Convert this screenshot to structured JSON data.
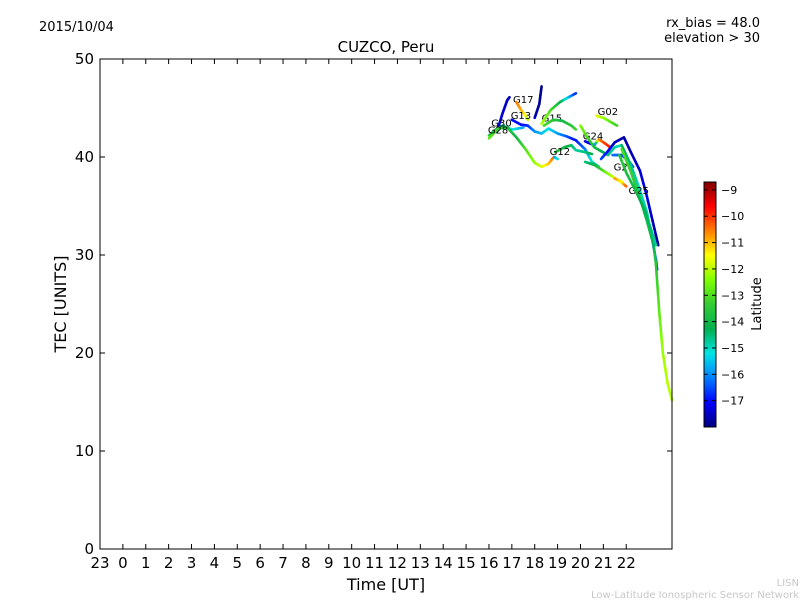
{
  "header": {
    "date": "2015/10/04",
    "rx_bias": "rx_bias = 48.0",
    "elevation": "elevation > 30"
  },
  "footer": {
    "line1": "LISN",
    "line2": "Low-Latitude Ionospheric Sensor Network"
  },
  "chart_data": {
    "type": "scatter",
    "title": "CUZCO, Peru",
    "xlabel": "Time [UT]",
    "ylabel": "TEC [UNITS]",
    "xlim": [
      -1,
      24
    ],
    "ylim": [
      0,
      50
    ],
    "x_ticks": [
      {
        "value": -1,
        "label": "23"
      },
      {
        "value": 0,
        "label": "0"
      },
      {
        "value": 1,
        "label": "1"
      },
      {
        "value": 2,
        "label": "2"
      },
      {
        "value": 3,
        "label": "3"
      },
      {
        "value": 4,
        "label": "4"
      },
      {
        "value": 5,
        "label": "5"
      },
      {
        "value": 6,
        "label": "6"
      },
      {
        "value": 7,
        "label": "7"
      },
      {
        "value": 8,
        "label": "8"
      },
      {
        "value": 9,
        "label": "9"
      },
      {
        "value": 10,
        "label": "10"
      },
      {
        "value": 11,
        "label": "11"
      },
      {
        "value": 12,
        "label": "12"
      },
      {
        "value": 13,
        "label": "13"
      },
      {
        "value": 14,
        "label": "14"
      },
      {
        "value": 15,
        "label": "15"
      },
      {
        "value": 16,
        "label": "16"
      },
      {
        "value": 17,
        "label": "17"
      },
      {
        "value": 18,
        "label": "18"
      },
      {
        "value": 19,
        "label": "19"
      },
      {
        "value": 20,
        "label": "20"
      },
      {
        "value": 21,
        "label": "21"
      },
      {
        "value": 22,
        "label": "22"
      }
    ],
    "y_ticks": [
      0,
      10,
      20,
      30,
      40,
      50
    ],
    "colorbar": {
      "label": "Latitude",
      "range": [
        -18,
        -8.7
      ],
      "ticks": [
        -9,
        -10,
        -11,
        -12,
        -13,
        -14,
        -15,
        -16,
        -17
      ],
      "colors": [
        "#00007f",
        "#0000ff",
        "#007fff",
        "#00e5e5",
        "#00b050",
        "#33cc33",
        "#7fff00",
        "#ffff00",
        "#ff8000",
        "#ff0000",
        "#7f0000"
      ]
    },
    "series": [
      {
        "name": "G17",
        "label_at": [
          17.05,
          45.5
        ],
        "points": [
          [
            16.35,
            42.6,
            -17.2
          ],
          [
            16.6,
            44.5,
            -17.4
          ],
          [
            16.8,
            45.8,
            -17.5
          ],
          [
            16.9,
            46.1,
            -17.6
          ]
        ]
      },
      {
        "name": "",
        "points": [
          [
            17.2,
            45.6,
            -10.5
          ],
          [
            17.4,
            44.8,
            -10.8
          ],
          [
            17.6,
            44.2,
            -11.5
          ],
          [
            17.7,
            43.8,
            -12.0
          ]
        ]
      },
      {
        "name": "G13",
        "label_at": [
          16.95,
          43.9
        ],
        "points": [
          [
            17.0,
            43.8,
            -17.0
          ],
          [
            17.4,
            43.3,
            -17.0
          ],
          [
            17.7,
            43.2,
            -16.8
          ]
        ]
      },
      {
        "name": "G15",
        "label_at": [
          18.3,
          43.6
        ],
        "points": [
          [
            18.0,
            44.0,
            -17.6
          ],
          [
            18.2,
            45.4,
            -17.8
          ],
          [
            18.3,
            47.2,
            -17.9
          ]
        ]
      },
      {
        "name": "",
        "points": [
          [
            18.3,
            43.4,
            -12.0
          ],
          [
            18.7,
            44.8,
            -13.0
          ],
          [
            19.1,
            45.6,
            -14.0
          ],
          [
            19.4,
            46.0,
            -15.2
          ],
          [
            19.8,
            46.5,
            -16.8
          ]
        ]
      },
      {
        "name": "G30",
        "label_at": [
          16.1,
          43.1
        ],
        "points": [
          [
            16.0,
            42.2,
            -13.6
          ],
          [
            16.3,
            42.8,
            -14.0
          ],
          [
            16.6,
            43.2,
            -14.5
          ],
          [
            17.0,
            42.8,
            -15.0
          ],
          [
            17.5,
            43.0,
            -15.8
          ]
        ]
      },
      {
        "name": "G28",
        "label_at": [
          15.95,
          42.4
        ],
        "points": [
          [
            16.0,
            41.9,
            -12.8
          ],
          [
            16.4,
            42.9,
            -13.2
          ],
          [
            16.8,
            43.0,
            -13.6
          ],
          [
            17.2,
            42.0,
            -14.0
          ],
          [
            17.6,
            40.8,
            -13.0
          ],
          [
            18.0,
            39.4,
            -12.3
          ],
          [
            18.3,
            39.0,
            -11.8
          ],
          [
            18.6,
            39.3,
            -11.2
          ],
          [
            18.8,
            39.9,
            -10.5
          ]
        ]
      },
      {
        "name": "",
        "points": [
          [
            17.7,
            43.2,
            -16.8
          ],
          [
            18.0,
            42.6,
            -16.0
          ],
          [
            18.3,
            42.4,
            -15.6
          ],
          [
            18.6,
            42.9,
            -15.2
          ],
          [
            19.0,
            42.4,
            -15.8
          ],
          [
            19.4,
            42.1,
            -16.4
          ],
          [
            19.8,
            41.7,
            -17.0
          ],
          [
            20.2,
            40.8,
            -16.2
          ],
          [
            20.5,
            39.5,
            -15.0
          ],
          [
            20.8,
            39.0,
            -14.5
          ]
        ]
      },
      {
        "name": "",
        "points": [
          [
            18.4,
            43.2,
            -13.0
          ],
          [
            18.8,
            43.8,
            -13.5
          ],
          [
            19.2,
            43.7,
            -14.0
          ],
          [
            19.6,
            43.2,
            -13.6
          ],
          [
            19.8,
            42.8,
            -13.2
          ]
        ]
      },
      {
        "name": "G12",
        "label_at": [
          18.65,
          40.2
        ],
        "points": [
          [
            18.9,
            40.5,
            -13.5
          ],
          [
            19.3,
            41.0,
            -14.0
          ],
          [
            19.6,
            41.2,
            -14.4
          ],
          [
            19.8,
            40.7,
            -14.8
          ],
          [
            20.2,
            40.5,
            -14.6
          ],
          [
            20.5,
            40.3,
            -14.2
          ]
        ]
      },
      {
        "name": "",
        "points": [
          [
            18.85,
            40.0,
            -16.0
          ],
          [
            19.0,
            39.8,
            -15.2
          ]
        ]
      },
      {
        "name": "G02",
        "label_at": [
          20.75,
          44.3
        ],
        "points": [
          [
            20.7,
            44.2,
            -11.6
          ],
          [
            21.0,
            44.0,
            -12.2
          ],
          [
            21.3,
            43.6,
            -12.8
          ],
          [
            21.6,
            43.2,
            -13.2
          ]
        ]
      },
      {
        "name": "G24",
        "label_at": [
          20.1,
          41.8
        ],
        "points": [
          [
            20.2,
            41.6,
            -17.2
          ],
          [
            20.6,
            41.2,
            -17.5
          ],
          [
            20.8,
            41.8,
            -10.8
          ],
          [
            21.0,
            41.5,
            -10.2
          ],
          [
            21.3,
            41.0,
            -9.8
          ]
        ]
      },
      {
        "name": "",
        "points": [
          [
            20.0,
            43.2,
            -12.4
          ],
          [
            20.3,
            42.0,
            -13.0
          ],
          [
            20.6,
            41.0,
            -13.8
          ],
          [
            20.9,
            40.6,
            -14.2
          ],
          [
            21.2,
            40.2,
            -14.5
          ],
          [
            21.5,
            41.0,
            -14.8
          ],
          [
            21.8,
            41.2,
            -15.0
          ]
        ]
      },
      {
        "name": "",
        "points": [
          [
            20.2,
            39.5,
            -14.6
          ],
          [
            20.6,
            39.2,
            -14.2
          ],
          [
            21.0,
            38.6,
            -13.0
          ],
          [
            21.4,
            38.0,
            -12.0
          ],
          [
            21.8,
            37.4,
            -11.5
          ],
          [
            22.0,
            37.0,
            -10.3
          ]
        ]
      },
      {
        "name": "G29",
        "label_at": [
          21.45,
          38.6
        ],
        "points": [
          [
            21.5,
            37.8,
            -10.6
          ],
          [
            21.8,
            37.5,
            -11.5
          ]
        ]
      },
      {
        "name": "",
        "points": [
          [
            20.9,
            39.8,
            -16.5
          ],
          [
            21.2,
            40.6,
            -17.0
          ],
          [
            21.5,
            41.5,
            -17.5
          ],
          [
            21.9,
            42.0,
            -17.7
          ],
          [
            22.2,
            40.5,
            -17.6
          ],
          [
            22.6,
            38.6,
            -17.4
          ],
          [
            22.9,
            36.0,
            -17.2
          ],
          [
            23.2,
            33.0,
            -17.6
          ],
          [
            23.4,
            31.0,
            -17.8
          ]
        ]
      },
      {
        "name": "",
        "points": [
          [
            21.4,
            40.2,
            -16.2
          ],
          [
            21.8,
            40.2,
            -16.5
          ],
          [
            22.1,
            39.6,
            -16.6
          ],
          [
            22.3,
            39.0,
            -16.4
          ]
        ]
      },
      {
        "name": "",
        "points": [
          [
            21.8,
            41.2,
            -14.2
          ],
          [
            22.2,
            39.2,
            -14.6
          ],
          [
            22.6,
            36.6,
            -15.0
          ],
          [
            22.9,
            34.4,
            -14.8
          ],
          [
            23.1,
            32.0,
            -15.5
          ],
          [
            23.3,
            29.5,
            -16.5
          ],
          [
            23.35,
            28.5,
            -16.8
          ]
        ]
      },
      {
        "name": "G25",
        "label_at": [
          22.1,
          36.2
        ],
        "points": [
          [
            21.8,
            40.8,
            -13.0
          ],
          [
            22.2,
            38.5,
            -13.3
          ],
          [
            22.6,
            35.8,
            -13.6
          ],
          [
            22.9,
            33.5,
            -13.9
          ],
          [
            23.2,
            31.0,
            -14.2
          ],
          [
            23.3,
            29.0,
            -13.5
          ],
          [
            23.45,
            24.0,
            -12.8
          ],
          [
            23.6,
            20.0,
            -12.2
          ],
          [
            23.8,
            17.0,
            -12.0
          ],
          [
            24.0,
            15.2,
            -12.0
          ]
        ]
      },
      {
        "name": "",
        "points": [
          [
            21.7,
            40.2,
            -13.5
          ],
          [
            22.0,
            38.4,
            -13.8
          ],
          [
            22.4,
            36.6,
            -14.0
          ],
          [
            22.8,
            34.6,
            -14.3
          ],
          [
            23.1,
            32.5,
            -14.5
          ],
          [
            23.3,
            31.0,
            -14.8
          ]
        ]
      }
    ]
  }
}
